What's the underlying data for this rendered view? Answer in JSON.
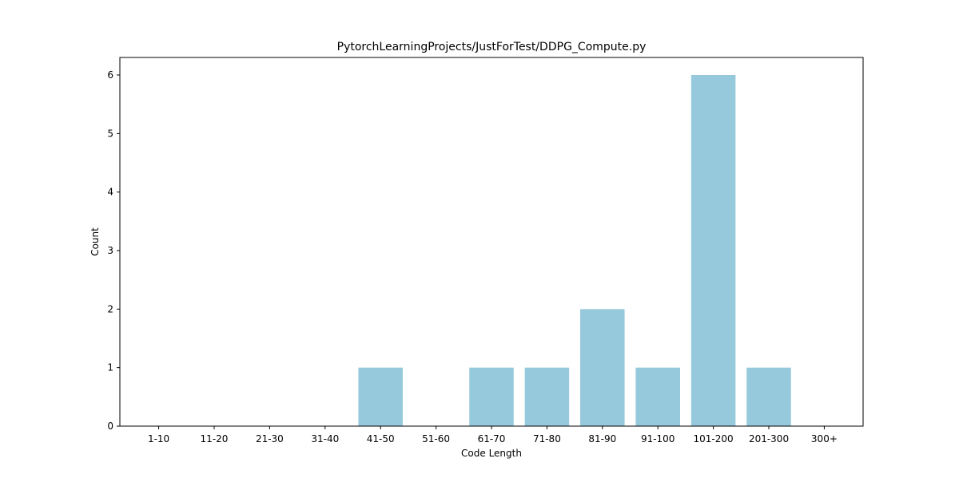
{
  "chart_data": {
    "type": "bar",
    "title": "PytorchLearningProjects/JustForTest/DDPG_Compute.py",
    "xlabel": "Code Length",
    "ylabel": "Count",
    "categories": [
      "1-10",
      "11-20",
      "21-30",
      "31-40",
      "41-50",
      "51-60",
      "61-70",
      "71-80",
      "81-90",
      "91-100",
      "101-200",
      "201-300",
      "300+"
    ],
    "values": [
      0,
      0,
      0,
      0,
      1,
      0,
      1,
      1,
      2,
      1,
      6,
      1,
      0
    ],
    "ylim": [
      0,
      6.3
    ],
    "yticks": [
      0,
      1,
      2,
      3,
      4,
      5,
      6
    ],
    "bar_color": "#96c9dc",
    "grid": false,
    "legend": "none"
  }
}
